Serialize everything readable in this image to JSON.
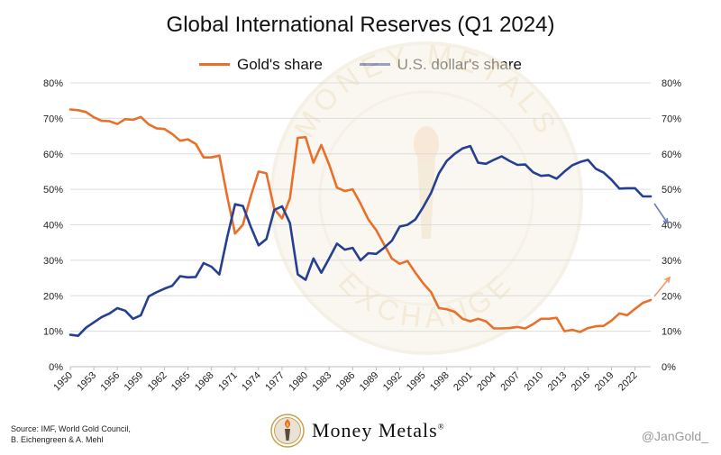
{
  "chart_data": {
    "type": "line",
    "title": "Global International Reserves (Q1 2024)",
    "xlabel": "",
    "ylabel": "",
    "ylim": [
      0,
      80
    ],
    "y_tick_labels": [
      "0%",
      "10%",
      "20%",
      "30%",
      "40%",
      "50%",
      "60%",
      "70%",
      "80%"
    ],
    "x_tick_labels": [
      "1950",
      "1953",
      "1956",
      "1959",
      "1962",
      "1965",
      "1968",
      "1971",
      "1974",
      "1977",
      "1980",
      "1983",
      "1986",
      "1989",
      "1992",
      "1995",
      "1998",
      "2001",
      "2004",
      "2007",
      "2010",
      "2013",
      "2016",
      "2019",
      "2022"
    ],
    "xlim": [
      1950,
      2024
    ],
    "grid": "horizontal",
    "legend_position": "top",
    "x": [
      1950,
      1951,
      1952,
      1953,
      1954,
      1955,
      1956,
      1957,
      1958,
      1959,
      1960,
      1961,
      1962,
      1963,
      1964,
      1965,
      1966,
      1967,
      1968,
      1969,
      1970,
      1971,
      1972,
      1973,
      1974,
      1975,
      1976,
      1977,
      1978,
      1979,
      1980,
      1981,
      1982,
      1983,
      1984,
      1985,
      1986,
      1987,
      1988,
      1989,
      1990,
      1991,
      1992,
      1993,
      1994,
      1995,
      1996,
      1997,
      1998,
      1999,
      2000,
      2001,
      2002,
      2003,
      2004,
      2005,
      2006,
      2007,
      2008,
      2009,
      2010,
      2011,
      2012,
      2013,
      2014,
      2015,
      2016,
      2017,
      2018,
      2019,
      2020,
      2021,
      2022,
      2023,
      2024
    ],
    "series": [
      {
        "name": "Gold's share",
        "color": "#E8702A",
        "values": [
          72.5,
          72.3,
          71.8,
          70.3,
          69.3,
          69.2,
          68.4,
          69.8,
          69.6,
          70.4,
          68.3,
          67.2,
          67.0,
          65.6,
          63.7,
          64.1,
          62.8,
          59.0,
          59.0,
          59.5,
          48.0,
          37.5,
          40.0,
          48.0,
          55.0,
          54.5,
          44.5,
          41.8,
          47.5,
          64.5,
          64.7,
          57.5,
          62.5,
          57.0,
          50.5,
          49.5,
          50.0,
          46.0,
          41.5,
          38.5,
          34.5,
          30.5,
          29.0,
          29.8,
          26.5,
          23.5,
          21.0,
          16.5,
          16.2,
          15.5,
          13.5,
          12.8,
          13.5,
          12.8,
          10.8,
          10.8,
          10.9,
          11.2,
          10.8,
          12.0,
          13.5,
          13.5,
          13.8,
          10.0,
          10.4,
          9.8,
          10.9,
          11.4,
          11.5,
          13.0,
          15.0,
          14.5,
          16.3,
          18.0,
          18.8
        ]
      },
      {
        "name": "U.S. dollar's share",
        "color": "#253F92",
        "values": [
          9.0,
          8.7,
          11.0,
          12.5,
          14.0,
          15.0,
          16.5,
          15.8,
          13.5,
          14.5,
          19.8,
          21.0,
          22.0,
          22.8,
          25.5,
          25.2,
          25.3,
          29.2,
          28.2,
          26.0,
          36.5,
          45.8,
          45.3,
          39.5,
          34.2,
          36.0,
          44.2,
          45.2,
          40.5,
          26.0,
          24.5,
          30.5,
          26.5,
          30.5,
          34.7,
          33.0,
          33.5,
          30.0,
          32.0,
          31.8,
          33.5,
          35.5,
          39.5,
          40.0,
          41.5,
          45.0,
          49.0,
          54.5,
          58.0,
          60.0,
          61.5,
          62.2,
          57.5,
          57.2,
          58.3,
          59.3,
          58.0,
          56.9,
          57.0,
          54.8,
          53.8,
          54.0,
          53.0,
          55.0,
          56.8,
          57.7,
          58.3,
          55.8,
          54.7,
          52.7,
          50.2,
          50.3,
          50.3,
          48.0,
          48.0
        ]
      }
    ],
    "annotations": [
      {
        "type": "arrow",
        "series": "U.S. dollar's share",
        "direction": "down"
      },
      {
        "type": "arrow",
        "series": "Gold's share",
        "direction": "up"
      }
    ]
  },
  "footer": {
    "source_line1": "Source: IMF, World Gold Council,",
    "source_line2": "B. Eichengreen & A. Mehl",
    "brand_name": "Money Metals",
    "brand_mark": "®",
    "handle": "@JanGold_"
  },
  "watermark": {
    "ring_text_top": "MONEY METALS",
    "ring_text_bottom": "EXCHANGE"
  },
  "colors": {
    "gold": "#E8702A",
    "usd": "#253F92",
    "grid": "#dcdcdc",
    "watermark": "#efe6d4"
  }
}
